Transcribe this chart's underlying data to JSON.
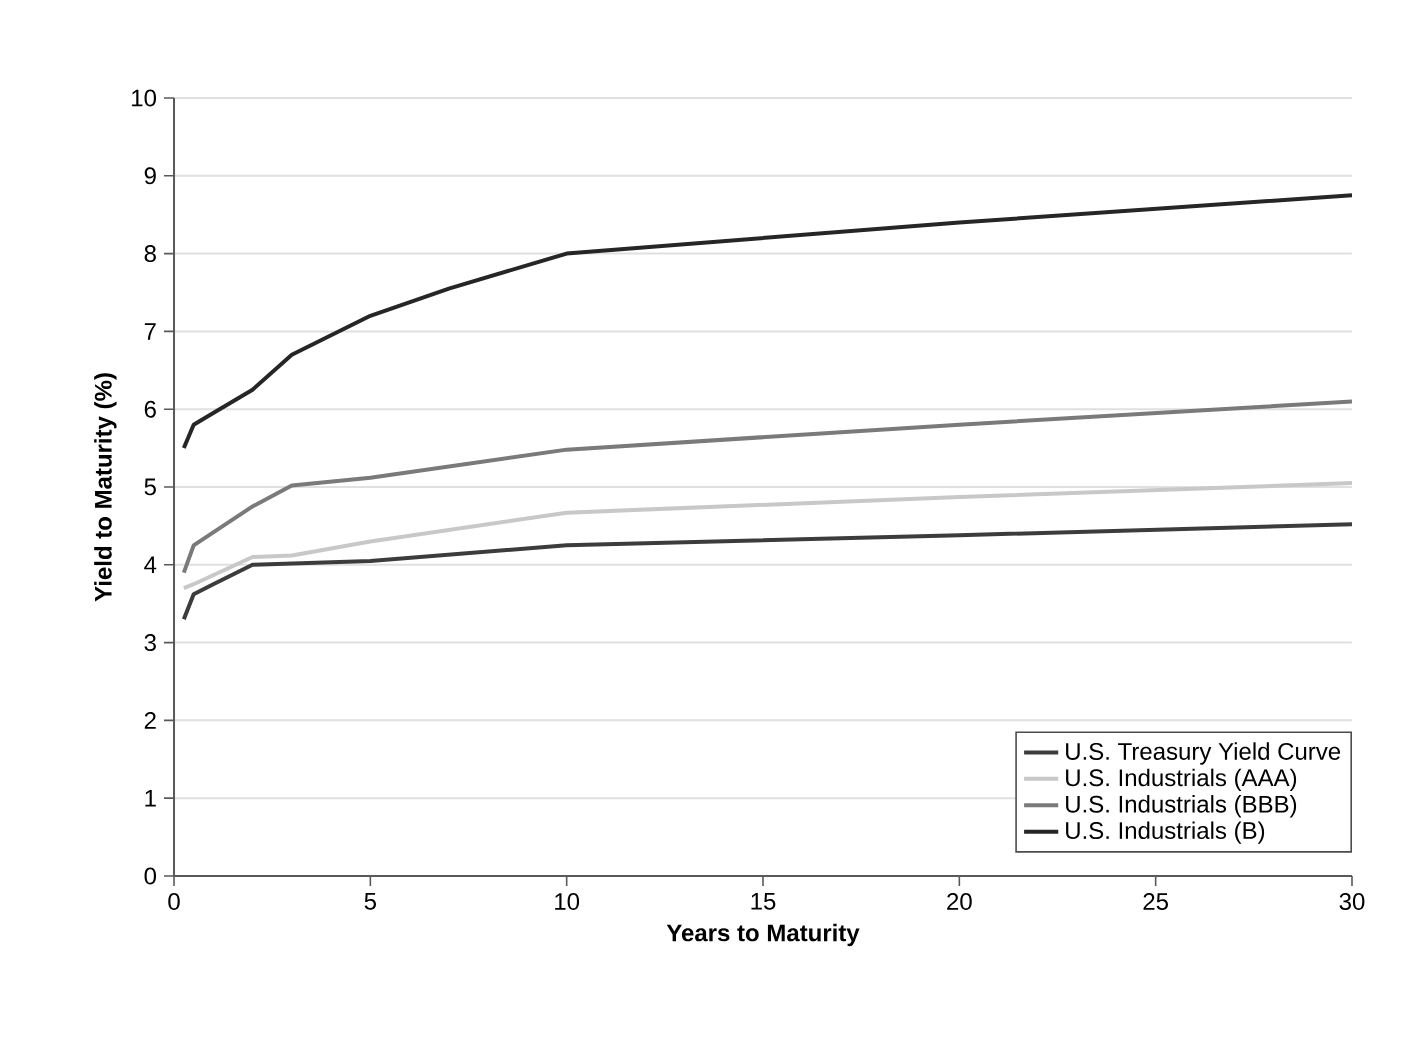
{
  "chart_data": {
    "type": "line",
    "xlabel": "Years to Maturity",
    "ylabel": "Yield to Maturity (%)",
    "xlim": [
      0,
      30
    ],
    "xticks": [
      0,
      5,
      10,
      15,
      20,
      25,
      30
    ],
    "ylim": [
      0,
      10
    ],
    "yticks": [
      0,
      1,
      2,
      3,
      4,
      5,
      6,
      7,
      8,
      9,
      10
    ],
    "grid": "y",
    "legend": "bottom right",
    "marker": "none",
    "line_style": "solid",
    "series": [
      {
        "name": "U.S. Treasury Yield Curve",
        "color": "#3c3c3c",
        "x": [
          0.25,
          0.5,
          1,
          2,
          5,
          10,
          20,
          30
        ],
        "values": [
          3.3,
          3.62,
          3.75,
          4.0,
          4.05,
          4.25,
          4.38,
          4.52
        ]
      },
      {
        "name": "U.S. Industrials (AAA)",
        "color": "#c8c8c8",
        "x": [
          0.25,
          0.5,
          2,
          3,
          5,
          10,
          20,
          30
        ],
        "values": [
          3.7,
          3.75,
          4.1,
          4.12,
          4.3,
          4.67,
          4.87,
          5.05
        ]
      },
      {
        "name": "U.S. Industrials (BBB)",
        "color": "#7a7a7a",
        "x": [
          0.25,
          0.5,
          2,
          3,
          5,
          10,
          20,
          30
        ],
        "values": [
          3.9,
          4.25,
          4.75,
          5.02,
          5.12,
          5.48,
          5.8,
          6.1
        ]
      },
      {
        "name": "U.S. Industrials (B)",
        "color": "#262626",
        "x": [
          0.25,
          0.5,
          1,
          2,
          3,
          5,
          7,
          10,
          20,
          30
        ],
        "values": [
          5.5,
          5.8,
          5.95,
          6.25,
          6.7,
          7.2,
          7.55,
          8.0,
          8.4,
          8.75
        ]
      }
    ]
  }
}
